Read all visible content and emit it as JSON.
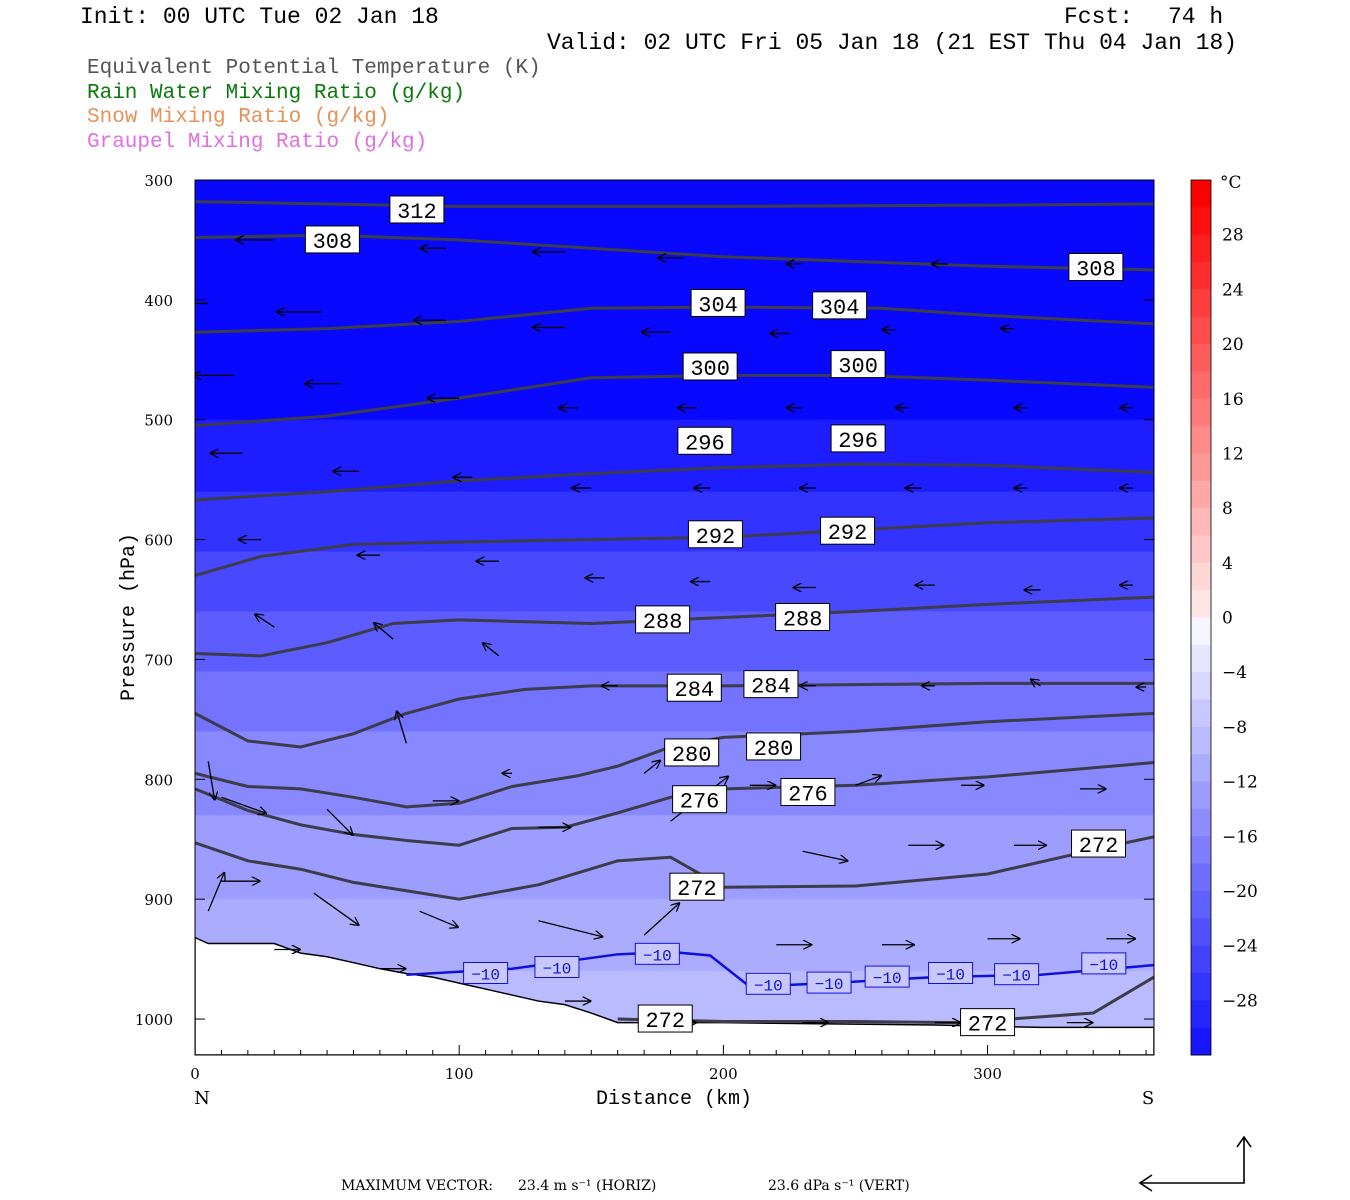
{
  "header": {
    "init": "Init: 00 UTC Tue 02 Jan 18",
    "fcst_label": "Fcst:",
    "fcst_value": "74 h",
    "valid": "Valid: 02 UTC Fri 05 Jan 18 (21 EST Thu 04 Jan 18)"
  },
  "legend": [
    {
      "text": "Equivalent Potential Temperature (K)",
      "color": "#555555"
    },
    {
      "text": "Rain Water Mixing Ratio (g/kg)",
      "color": "#0a7a0a"
    },
    {
      "text": "Snow Mixing Ratio (g/kg)",
      "color": "#e8905a"
    },
    {
      "text": "Graupel Mixing Ratio (g/kg)",
      "color": "#e070e0"
    }
  ],
  "footer": {
    "max_vector_label": "MAXIMUM VECTOR:",
    "horiz": "23.4 m s⁻¹ (HORIZ)",
    "vert": "23.6 dPa s⁻¹ (VERT)"
  },
  "chart_data": {
    "type": "cross-section",
    "xlabel": "Distance (km)",
    "ylabel": "Pressure (hPa)",
    "x_ticks": [
      0,
      100,
      200,
      300
    ],
    "y_ticks": [
      300,
      400,
      500,
      600,
      700,
      800,
      900,
      1000
    ],
    "xlim": [
      0,
      363
    ],
    "ylim": [
      1030,
      300
    ],
    "x_ends": {
      "left": "N",
      "right": "S"
    },
    "colorbar": {
      "unit": "°C",
      "labels": [
        28,
        24,
        20,
        16,
        12,
        8,
        4,
        0,
        -4,
        -8,
        -12,
        -16,
        -20,
        -24,
        -28
      ],
      "range": [
        -32,
        32
      ]
    },
    "temperature_fill_levels": [
      {
        "p": 300,
        "t": -33
      },
      {
        "p": 500,
        "t": -30
      },
      {
        "p": 560,
        "t": -27
      },
      {
        "p": 610,
        "t": -24
      },
      {
        "p": 660,
        "t": -21
      },
      {
        "p": 710,
        "t": -18
      },
      {
        "p": 760,
        "t": -15
      },
      {
        "p": 830,
        "t": -12
      },
      {
        "p": 900,
        "t": -10
      },
      {
        "p": 960,
        "t": -8
      },
      {
        "p": 1010,
        "t": -6
      }
    ],
    "theta_e_contours": [
      {
        "value": 312,
        "x": [
          0,
          100,
          200,
          300,
          363
        ],
        "p": [
          318,
          322,
          322,
          321,
          320
        ]
      },
      {
        "value": 308,
        "x": [
          0,
          50,
          100,
          200,
          300,
          363
        ],
        "p": [
          348,
          346,
          350,
          364,
          372,
          375
        ]
      },
      {
        "value": 304,
        "x": [
          0,
          50,
          100,
          150,
          200,
          260,
          300,
          363
        ],
        "p": [
          427,
          424,
          418,
          407,
          406,
          407,
          413,
          420
        ]
      },
      {
        "value": 300,
        "x": [
          0,
          50,
          100,
          150,
          200,
          250,
          300,
          363
        ],
        "p": [
          505,
          497,
          482,
          465,
          463,
          463,
          467,
          473
        ]
      },
      {
        "value": 296,
        "x": [
          0,
          50,
          100,
          150,
          200,
          250,
          300,
          363
        ],
        "p": [
          567,
          560,
          551,
          545,
          540,
          537,
          538,
          544
        ]
      },
      {
        "value": 292,
        "x": [
          0,
          25,
          60,
          100,
          150,
          200,
          250,
          300,
          363
        ],
        "p": [
          630,
          614,
          604,
          602,
          600,
          598,
          592,
          586,
          582
        ]
      },
      {
        "value": 288,
        "x": [
          0,
          25,
          50,
          75,
          100,
          150,
          200,
          250,
          300,
          363
        ],
        "p": [
          695,
          697,
          686,
          670,
          667,
          670,
          665,
          660,
          654,
          648
        ]
      },
      {
        "value": 284,
        "x": [
          0,
          20,
          40,
          60,
          80,
          100,
          125,
          150,
          200,
          250,
          300,
          363
        ],
        "p": [
          745,
          768,
          773,
          762,
          745,
          733,
          725,
          722,
          722,
          721,
          720,
          720
        ]
      },
      {
        "value": 280,
        "x": [
          0,
          20,
          40,
          60,
          80,
          100,
          120,
          145,
          160,
          180,
          200,
          250,
          300,
          363
        ],
        "p": [
          795,
          806,
          808,
          815,
          823,
          820,
          806,
          797,
          789,
          773,
          765,
          760,
          752,
          745
        ]
      },
      {
        "value": 276,
        "x": [
          0,
          20,
          40,
          60,
          80,
          100,
          120,
          140,
          160,
          180,
          200,
          250,
          300,
          363
        ],
        "p": [
          808,
          826,
          838,
          846,
          851,
          855,
          841,
          840,
          828,
          815,
          808,
          805,
          798,
          786
        ]
      },
      {
        "value": 272,
        "x": [
          0,
          20,
          40,
          60,
          80,
          100,
          130,
          160,
          180,
          200,
          250,
          300,
          350,
          363
        ],
        "p": [
          853,
          868,
          875,
          886,
          893,
          900,
          888,
          868,
          865,
          890,
          889,
          879,
          854,
          848
        ]
      },
      {
        "value": 272,
        "x": [
          160,
          200,
          250,
          290,
          340,
          363
        ],
        "p": [
          1000,
          1002,
          1002,
          1003,
          995,
          965
        ]
      }
    ],
    "theta_e_labels": [
      {
        "value": 312,
        "x": 84,
        "p": 325
      },
      {
        "value": 308,
        "x": 52,
        "p": 350
      },
      {
        "value": 308,
        "x": 341,
        "p": 373
      },
      {
        "value": 304,
        "x": 198,
        "p": 403
      },
      {
        "value": 304,
        "x": 244,
        "p": 405
      },
      {
        "value": 300,
        "x": 195,
        "p": 456
      },
      {
        "value": 300,
        "x": 251,
        "p": 454
      },
      {
        "value": 296,
        "x": 193,
        "p": 518
      },
      {
        "value": 296,
        "x": 251,
        "p": 516
      },
      {
        "value": 292,
        "x": 197,
        "p": 596
      },
      {
        "value": 292,
        "x": 247,
        "p": 593
      },
      {
        "value": 288,
        "x": 177,
        "p": 667
      },
      {
        "value": 288,
        "x": 230,
        "p": 665
      },
      {
        "value": 284,
        "x": 189,
        "p": 724
      },
      {
        "value": 284,
        "x": 218,
        "p": 721
      },
      {
        "value": 280,
        "x": 188,
        "p": 778
      },
      {
        "value": 280,
        "x": 219,
        "p": 773
      },
      {
        "value": 276,
        "x": 191,
        "p": 817
      },
      {
        "value": 276,
        "x": 232,
        "p": 811
      },
      {
        "value": 272,
        "x": 190,
        "p": 890
      },
      {
        "value": 272,
        "x": 342,
        "p": 854
      },
      {
        "value": 272,
        "x": 178,
        "p": 1000
      },
      {
        "value": 272,
        "x": 300,
        "p": 1003
      }
    ],
    "isotherm_minus10": {
      "value": -10,
      "x": [
        80,
        120,
        160,
        180,
        195,
        210,
        240,
        280,
        320,
        363
      ],
      "p": [
        963,
        958,
        946,
        944,
        947,
        973,
        970,
        965,
        963,
        955
      ],
      "labels": [
        {
          "x": 110,
          "p": 962
        },
        {
          "x": 137,
          "p": 957
        },
        {
          "x": 175,
          "p": 946
        },
        {
          "x": 217,
          "p": 971
        },
        {
          "x": 240,
          "p": 970
        },
        {
          "x": 262,
          "p": 965
        },
        {
          "x": 286,
          "p": 962
        },
        {
          "x": 311,
          "p": 963
        },
        {
          "x": 344,
          "p": 954
        }
      ]
    },
    "terrain": {
      "x": [
        0,
        5,
        10,
        20,
        30,
        40,
        50,
        60,
        70,
        80,
        90,
        100,
        110,
        120,
        130,
        140,
        150,
        160,
        180,
        200,
        240,
        280,
        320,
        363
      ],
      "p": [
        932,
        937,
        937,
        937,
        937,
        945,
        948,
        953,
        958,
        962,
        965,
        970,
        975,
        980,
        985,
        988,
        995,
        1003,
        1003,
        1003,
        1004,
        1005,
        1007,
        1007
      ]
    },
    "wind_vectors": [
      {
        "x": 0,
        "p": 350,
        "u": -15,
        "w": 0
      },
      {
        "x": 30,
        "p": 350,
        "u": -12,
        "w": 0
      },
      {
        "x": 60,
        "p": 352,
        "u": -10,
        "w": 0
      },
      {
        "x": 95,
        "p": 357,
        "u": -8,
        "w": 0
      },
      {
        "x": 140,
        "p": 360,
        "u": -10,
        "w": 0
      },
      {
        "x": 185,
        "p": 365,
        "u": -8,
        "w": 0
      },
      {
        "x": 230,
        "p": 370,
        "u": -5,
        "w": 0
      },
      {
        "x": 285,
        "p": 370,
        "u": -5,
        "w": 0
      },
      {
        "x": 340,
        "p": 370,
        "u": -4,
        "w": 0
      },
      {
        "x": 5,
        "p": 403,
        "u": -15,
        "w": 0
      },
      {
        "x": 48,
        "p": 410,
        "u": -14,
        "w": 0
      },
      {
        "x": 95,
        "p": 417,
        "u": -10,
        "w": 0
      },
      {
        "x": 140,
        "p": 423,
        "u": -10,
        "w": 0
      },
      {
        "x": 180,
        "p": 427,
        "u": -9,
        "w": 0
      },
      {
        "x": 225,
        "p": 428,
        "u": -6,
        "w": 0
      },
      {
        "x": 265,
        "p": 425,
        "u": -4,
        "w": 0
      },
      {
        "x": 310,
        "p": 424,
        "u": -4,
        "w": 0
      },
      {
        "x": 15,
        "p": 463,
        "u": -13,
        "w": 0
      },
      {
        "x": 55,
        "p": 470,
        "u": -11,
        "w": 0
      },
      {
        "x": 100,
        "p": 482,
        "u": -10,
        "w": 0
      },
      {
        "x": 145,
        "p": 490,
        "u": -6,
        "w": 0
      },
      {
        "x": 190,
        "p": 490,
        "u": -6,
        "w": 0
      },
      {
        "x": 230,
        "p": 490,
        "u": -5,
        "w": 0
      },
      {
        "x": 270,
        "p": 490,
        "u": -4,
        "w": 0
      },
      {
        "x": 315,
        "p": 490,
        "u": -4,
        "w": 0
      },
      {
        "x": 355,
        "p": 490,
        "u": -4,
        "w": 0
      },
      {
        "x": 18,
        "p": 528,
        "u": -10,
        "w": 0
      },
      {
        "x": 62,
        "p": 543,
        "u": -8,
        "w": 0
      },
      {
        "x": 105,
        "p": 548,
        "u": -6,
        "w": 0
      },
      {
        "x": 150,
        "p": 557,
        "u": -6,
        "w": 0
      },
      {
        "x": 195,
        "p": 557,
        "u": -5,
        "w": 0
      },
      {
        "x": 235,
        "p": 557,
        "u": -5,
        "w": 0
      },
      {
        "x": 275,
        "p": 557,
        "u": -5,
        "w": 0
      },
      {
        "x": 315,
        "p": 557,
        "u": -4,
        "w": 0
      },
      {
        "x": 355,
        "p": 557,
        "u": -4,
        "w": 0
      },
      {
        "x": 25,
        "p": 600,
        "u": -7,
        "w": 0
      },
      {
        "x": 70,
        "p": 613,
        "u": -7,
        "w": 0
      },
      {
        "x": 115,
        "p": 618,
        "u": -7,
        "w": 0
      },
      {
        "x": 155,
        "p": 632,
        "u": -6,
        "w": 0
      },
      {
        "x": 195,
        "p": 635,
        "u": -6,
        "w": 0
      },
      {
        "x": 235,
        "p": 640,
        "u": -7,
        "w": 0
      },
      {
        "x": 280,
        "p": 638,
        "u": -6,
        "w": 0
      },
      {
        "x": 320,
        "p": 642,
        "u": -5,
        "w": 0
      },
      {
        "x": 355,
        "p": 638,
        "u": -4,
        "w": 0
      },
      {
        "x": 30,
        "p": 673,
        "u": -6,
        "w": 4
      },
      {
        "x": 75,
        "p": 683,
        "u": -6,
        "w": 5
      },
      {
        "x": 115,
        "p": 697,
        "u": -5,
        "w": 4
      },
      {
        "x": 160,
        "p": 722,
        "u": -5,
        "w": 0
      },
      {
        "x": 195,
        "p": 720,
        "u": -5,
        "w": 0
      },
      {
        "x": 235,
        "p": 722,
        "u": -5,
        "w": 0
      },
      {
        "x": 280,
        "p": 722,
        "u": -4,
        "w": 0
      },
      {
        "x": 320,
        "p": 722,
        "u": -3,
        "w": 2
      },
      {
        "x": 360,
        "p": 723,
        "u": -3,
        "w": 0
      },
      {
        "x": 5,
        "p": 785,
        "u": 2,
        "w": -12
      },
      {
        "x": 80,
        "p": 770,
        "u": -3,
        "w": 10
      },
      {
        "x": 120,
        "p": 795,
        "u": -3,
        "w": 0
      },
      {
        "x": 170,
        "p": 795,
        "u": 5,
        "w": 4
      },
      {
        "x": 210,
        "p": 805,
        "u": 8,
        "w": 0
      },
      {
        "x": 250,
        "p": 805,
        "u": 8,
        "w": 3
      },
      {
        "x": 290,
        "p": 805,
        "u": 7,
        "w": 0
      },
      {
        "x": 335,
        "p": 808,
        "u": 8,
        "w": 0
      },
      {
        "x": 10,
        "p": 815,
        "u": 14,
        "w": -5
      },
      {
        "x": 50,
        "p": 825,
        "u": 8,
        "w": -8
      },
      {
        "x": 90,
        "p": 818,
        "u": 8,
        "w": 0
      },
      {
        "x": 130,
        "p": 840,
        "u": 10,
        "w": 0
      },
      {
        "x": 180,
        "p": 835,
        "u": 18,
        "w": 14
      },
      {
        "x": 230,
        "p": 860,
        "u": 14,
        "w": -3
      },
      {
        "x": 270,
        "p": 855,
        "u": 11,
        "w": 0
      },
      {
        "x": 310,
        "p": 855,
        "u": 10,
        "w": 0
      },
      {
        "x": 10,
        "p": 885,
        "u": 12,
        "w": 0
      },
      {
        "x": 45,
        "p": 895,
        "u": 14,
        "w": -10
      },
      {
        "x": 85,
        "p": 910,
        "u": 12,
        "w": -5
      },
      {
        "x": 130,
        "p": 918,
        "u": 20,
        "w": -5
      },
      {
        "x": 170,
        "p": 930,
        "u": 11,
        "w": 10
      },
      {
        "x": 220,
        "p": 938,
        "u": 11,
        "w": 0
      },
      {
        "x": 260,
        "p": 938,
        "u": 10,
        "w": 0
      },
      {
        "x": 300,
        "p": 933,
        "u": 10,
        "w": 0
      },
      {
        "x": 345,
        "p": 933,
        "u": 9,
        "w": 0
      },
      {
        "x": 5,
        "p": 910,
        "u": 5,
        "w": 12
      },
      {
        "x": 30,
        "p": 942,
        "u": 8,
        "w": 0
      },
      {
        "x": 70,
        "p": 958,
        "u": 8,
        "w": 0
      },
      {
        "x": 140,
        "p": 985,
        "u": 8,
        "w": 0
      },
      {
        "x": 180,
        "p": 1003,
        "u": 8,
        "w": 0
      },
      {
        "x": 230,
        "p": 1003,
        "u": 8,
        "w": 0
      },
      {
        "x": 280,
        "p": 1003,
        "u": 8,
        "w": 0
      },
      {
        "x": 330,
        "p": 1003,
        "u": 8,
        "w": 0
      }
    ],
    "grid": false,
    "legend_placement": "top-left"
  }
}
